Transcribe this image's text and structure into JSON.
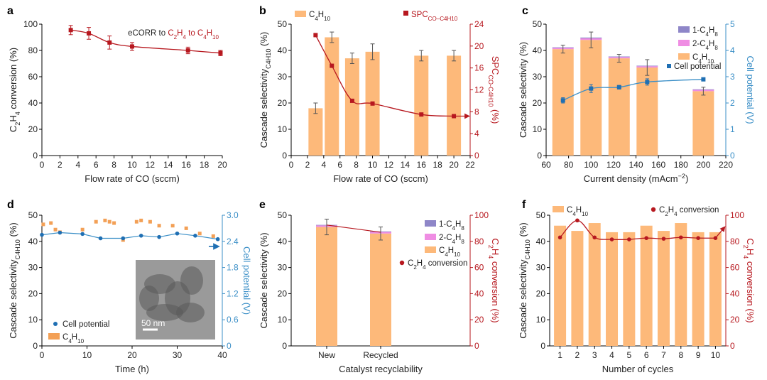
{
  "colors": {
    "red": "#b7181f",
    "orange": "#fdb97a",
    "blue": "#1f6fb3",
    "purple": "#8e86c8",
    "pink": "#ef8de3",
    "grey": "#d8d8d8",
    "axisBlue": "#3b8fc7"
  },
  "chart_data": [
    {
      "id": "a",
      "panel_label": "a",
      "type": "line",
      "xlabel": "Flow rate of CO (sccm)",
      "ylabel": "C2H4 conversion (%)",
      "xlim": [
        0,
        20
      ],
      "ylim": [
        0,
        100
      ],
      "xticks": [
        "0",
        "2",
        "4",
        "6",
        "8",
        "10",
        "12",
        "14",
        "16",
        "18",
        "20"
      ],
      "yticks": [
        "0",
        "20",
        "40",
        "60",
        "80",
        "100"
      ],
      "annotation_prefix": "eCORR to ",
      "annotation_rest": "C2H4 to C4H10",
      "series": [
        {
          "name": "eCORR to C2H4 to C4H10",
          "x": [
            3.2,
            5.2,
            7.5,
            10,
            16.2,
            19.8
          ],
          "y": [
            95.5,
            93,
            86,
            83,
            80,
            78
          ],
          "err": [
            3.5,
            4.5,
            5,
            3,
            2.5,
            2
          ]
        }
      ]
    },
    {
      "id": "b",
      "panel_label": "b",
      "type": "bar+line",
      "xlabel": "Flow rate of CO (sccm)",
      "ylabel": "Cascade selectivity C4H10 (%)",
      "ylabel_right": "SPC CO-C4H10 (%)",
      "xlim": [
        0,
        22
      ],
      "ylim": [
        0,
        50
      ],
      "ylim_right": [
        0,
        24
      ],
      "xticks": [
        "0",
        "2",
        "4",
        "6",
        "8",
        "10",
        "12",
        "14",
        "16",
        "18",
        "20",
        "22"
      ],
      "yticks": [
        "0",
        "10",
        "20",
        "30",
        "40",
        "50"
      ],
      "yticks_right": [
        "0",
        "4",
        "8",
        "12",
        "16",
        "20",
        "24"
      ],
      "legend": [
        "C4H10",
        "SPC CO-C4H10"
      ],
      "bars": {
        "name": "C4H10",
        "x": [
          3,
          5,
          7.5,
          10,
          16,
          20
        ],
        "values": [
          18,
          45,
          37,
          39.5,
          38,
          38
        ],
        "err": [
          2,
          2,
          2,
          3,
          2,
          2
        ]
      },
      "line": {
        "name": "SPC CO-C4H10",
        "x": [
          3,
          5,
          7.5,
          10,
          16,
          20
        ],
        "values": [
          22,
          16.4,
          10,
          9.5,
          7.5,
          7.2
        ]
      }
    },
    {
      "id": "c",
      "panel_label": "c",
      "type": "stacked-bar+line",
      "xlabel": "Current density (mAcm−2)",
      "ylabel": "Cascade selectivity (%)",
      "ylabel_right": "Cell potential (V)",
      "xlim": [
        60,
        220
      ],
      "ylim": [
        0,
        50
      ],
      "ylim_right": [
        0,
        5
      ],
      "xticks": [
        "60",
        "80",
        "100",
        "120",
        "140",
        "160",
        "180",
        "200",
        "220"
      ],
      "yticks": [
        "0",
        "10",
        "20",
        "30",
        "40",
        "50"
      ],
      "yticks_right": [
        "0",
        "1",
        "2",
        "3",
        "4",
        "5"
      ],
      "legend": [
        "1-C4H8",
        "2-C4H8",
        "C4H10",
        "Cell potential"
      ],
      "x": [
        75,
        100,
        125,
        150,
        200
      ],
      "series": [
        {
          "name": "C4H10",
          "values": [
            40.5,
            44,
            37,
            33.5,
            24.5
          ]
        },
        {
          "name": "2-C4H8",
          "values": [
            0.5,
            0.6,
            0.5,
            0.5,
            0.5
          ]
        },
        {
          "name": "1-C4H8",
          "values": [
            0.2,
            0.3,
            0.2,
            0.2,
            0.2
          ]
        }
      ],
      "err": [
        1.5,
        3,
        1.5,
        3,
        1.5
      ],
      "line": {
        "name": "Cell potential",
        "x": [
          75,
          100,
          125,
          150,
          200
        ],
        "values": [
          2.1,
          2.55,
          2.6,
          2.8,
          2.9
        ],
        "err": [
          0.1,
          0.15,
          0.07,
          0.12,
          0.06
        ]
      }
    },
    {
      "id": "d",
      "panel_label": "d",
      "type": "scatter",
      "xlabel": "Time (h)",
      "ylabel": "Cascade selectivity C4H10 (%)",
      "ylabel_right": "Cell potential (V)",
      "xlim": [
        0,
        40
      ],
      "ylim": [
        0,
        50
      ],
      "ylim_right": [
        0,
        3
      ],
      "xticks": [
        "0",
        "10",
        "20",
        "30",
        "40"
      ],
      "yticks": [
        "0",
        "10",
        "20",
        "30",
        "40",
        "50"
      ],
      "yticks_right": [
        "0",
        "0.6",
        "1.2",
        "1.8",
        "2.4",
        "3.0"
      ],
      "legend": [
        "Cell potential",
        "C4H10"
      ],
      "inset_scale": "50 nm",
      "cell_potential": {
        "x": [
          0,
          4,
          9,
          13,
          18,
          22,
          26,
          30,
          34,
          39
        ],
        "values": [
          2.55,
          2.6,
          2.57,
          2.47,
          2.47,
          2.53,
          2.5,
          2.58,
          2.53,
          2.45
        ]
      },
      "c4h10": {
        "x": [
          0.3,
          2,
          3,
          4,
          9,
          12,
          14,
          15,
          16,
          18,
          21,
          22,
          24,
          26,
          29,
          32,
          35,
          38
        ],
        "values": [
          46.5,
          47,
          44.5,
          43.5,
          44.5,
          47.5,
          48,
          47.5,
          47,
          40.5,
          47.5,
          48,
          47.5,
          46,
          46,
          45,
          43,
          42
        ]
      }
    },
    {
      "id": "e",
      "panel_label": "e",
      "type": "stacked-bar+line",
      "xlabel": "Catalyst recyclability",
      "ylabel": "Cascade selectivity (%)",
      "ylabel_right": "C2H4 conversion (%)",
      "ylim": [
        0,
        50
      ],
      "ylim_right": [
        0,
        100
      ],
      "categories": [
        "New",
        "Recycled"
      ],
      "yticks": [
        "0",
        "10",
        "20",
        "30",
        "40",
        "50"
      ],
      "yticks_right": [
        "0",
        "20",
        "40",
        "60",
        "80",
        "100"
      ],
      "legend": [
        "1-C4H8",
        "2-C4H8",
        "C4H10",
        "C2H4 conversion"
      ],
      "series": [
        {
          "name": "C4H10",
          "values": [
            45.5,
            43
          ]
        },
        {
          "name": "2-C4H8",
          "values": [
            0.6,
            0.6
          ]
        },
        {
          "name": "1-C4H8",
          "values": [
            0.2,
            0.2
          ]
        }
      ],
      "err": [
        3,
        2.5
      ],
      "line": {
        "name": "C2H4 conversion",
        "values": [
          92.5,
          87
        ]
      }
    },
    {
      "id": "f",
      "panel_label": "f",
      "type": "bar+line",
      "xlabel": "Number of cycles",
      "ylabel": "Cascade selectivity C4H10 (%)",
      "ylabel_right": "C2H4 conversion (%)",
      "ylim": [
        0,
        50
      ],
      "ylim_right": [
        0,
        100
      ],
      "categories": [
        "1",
        "2",
        "3",
        "4",
        "5",
        "6",
        "7",
        "8",
        "9",
        "10"
      ],
      "yticks": [
        "0",
        "10",
        "20",
        "30",
        "40",
        "50"
      ],
      "yticks_right": [
        "0",
        "20",
        "40",
        "60",
        "80",
        "100"
      ],
      "legend": [
        "C4H10",
        "C2H4 conversion"
      ],
      "bars": {
        "name": "C4H10",
        "values": [
          46,
          44,
          47,
          43.5,
          43.5,
          46,
          44,
          47,
          43.5,
          43.5
        ]
      },
      "line": {
        "name": "C2H4 conversion",
        "values": [
          83,
          96,
          83,
          81.5,
          81.5,
          82.5,
          82,
          83,
          82.5,
          82.5
        ]
      }
    }
  ]
}
